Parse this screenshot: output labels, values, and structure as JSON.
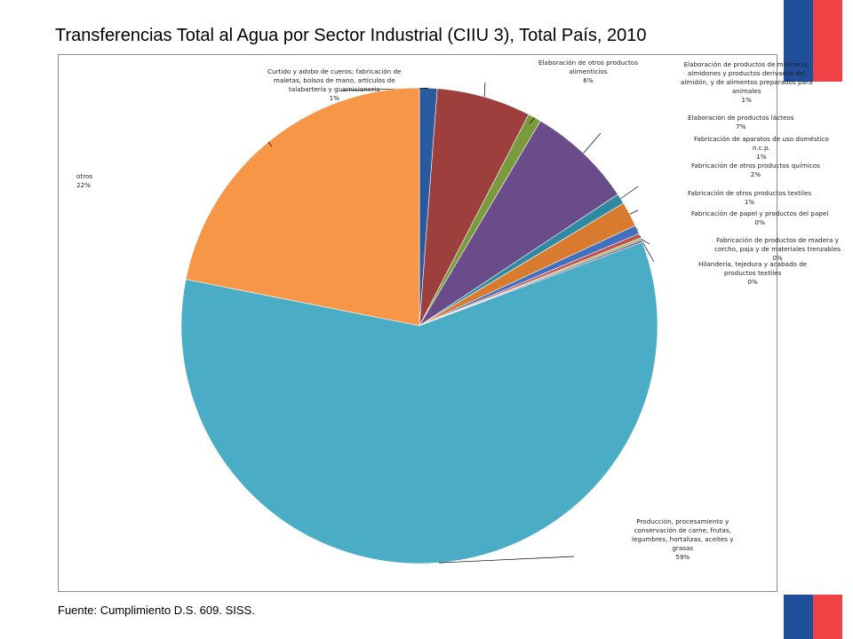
{
  "title": "Transferencias Total al Agua por Sector Industrial (CIIU 3), Total País, 2010",
  "source": "Fuente: Cumplimiento D.S. 609. SISS.",
  "brand": {
    "blue": "#1f4e9b",
    "red": "#ef4244"
  },
  "chart_data": {
    "type": "pie",
    "title": "Transferencias Total al Agua por Sector Industrial (CIIU 3), Total País, 2010",
    "start_angle_deg": 0,
    "direction": "clockwise",
    "slices": [
      {
        "label_lines": [
          "Curtido y adobo de cueros;  fabricación de",
          "maletas, bolsos de mano, artículos de",
          "talabartería y guarnicionería"
        ],
        "pct_label": "1%",
        "value": 1.2,
        "color": "#2a5a9e"
      },
      {
        "label_lines": [
          "Elaboración de otros productos",
          "alimenticios"
        ],
        "pct_label": "6%",
        "value": 6.4,
        "color": "#9c3f3d"
      },
      {
        "label_lines": [
          "Elaboración de productos de molinería,",
          "almidones y productos derivados del",
          "almidón, y de alimentos preparados para",
          "animales"
        ],
        "pct_label": "1%",
        "value": 0.9,
        "color": "#7a9b3b"
      },
      {
        "label_lines": [
          "Elaboración de productos lácteos"
        ],
        "pct_label": "7%",
        "value": 7.2,
        "color": "#6a4c8a"
      },
      {
        "label_lines": [
          "Fabricación de aparatos de uso doméstico",
          "n.c.p."
        ],
        "pct_label": "1%",
        "value": 0.7,
        "color": "#2f8aa1"
      },
      {
        "label_lines": [
          "Fabricación de otros productos químicos"
        ],
        "pct_label": "2%",
        "value": 1.7,
        "color": "#d97b2e"
      },
      {
        "label_lines": [
          "Fabricación de otros productos textiles"
        ],
        "pct_label": "1%",
        "value": 0.6,
        "color": "#4270c0"
      },
      {
        "label_lines": [
          "Fabricación de papel y productos del papel"
        ],
        "pct_label": "0%",
        "value": 0.3,
        "color": "#c0504d"
      },
      {
        "label_lines": [
          "Fabricación de productos de madera y",
          "corcho,  paja y de materiales trenzables"
        ],
        "pct_label": "0%",
        "value": 0.15,
        "color": "#9bbb59"
      },
      {
        "label_lines": [
          "Hilandería, tejedura y acabado de",
          "productos textiles"
        ],
        "pct_label": "0%",
        "value": 0.15,
        "color": "#8064a2"
      },
      {
        "label_lines": [
          "Producción, procesamiento y",
          "conservación de carne, frutas,",
          "legumbres, hortalizas, aceites y",
          "grasas"
        ],
        "pct_label": "59%",
        "value": 58.9,
        "color": "#4bacc6"
      },
      {
        "label_lines": [
          "otros"
        ],
        "pct_label": "22%",
        "value": 21.9,
        "color": "#f79646"
      }
    ]
  }
}
